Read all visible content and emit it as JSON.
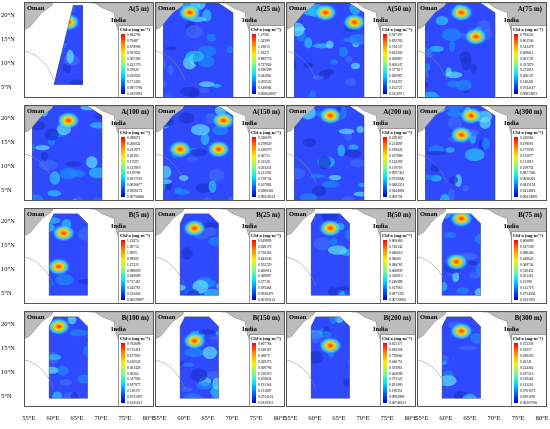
{
  "chart_data": [
    {
      "type": "heatmap",
      "title": "A(5 m)",
      "legend_title": "Chl-a (mg·m⁻³)",
      "ticks": [
        "0.842794",
        "0.79487",
        "0.678996",
        "0.591822",
        "0.507496",
        "0.423179",
        "0.33925",
        "0.255026",
        "0.171403",
        "0.0871786",
        "0.0335993"
      ],
      "hot_spots": [
        [
          62,
          22
        ],
        [
          63,
          19
        ]
      ],
      "extent": "diagonal coastal strip"
    },
    {
      "type": "heatmap",
      "title": "A(25 m)",
      "legend_title": "Chl-a (mg·m⁻³)",
      "ticks": [
        "1.47561",
        "1.32399",
        "1.18015",
        "1.03271",
        "0.885776",
        "0.737826",
        "0.590399",
        "0.442961",
        "0.295522",
        "0.148084",
        "0.000645007"
      ],
      "hot_spots": [
        [
          61,
          21
        ]
      ],
      "extent": "full"
    },
    {
      "type": "heatmap",
      "title": "A(50 m)",
      "legend_title": "Chl-a (mg·m⁻³)",
      "ticks": [
        "0.927397",
        "0.835782",
        "0.744137",
        "0.652502",
        "0.560867",
        "0.469247",
        "0.377617",
        "0.285987",
        "0.194357",
        "0.102727",
        "0.0110971"
      ],
      "hot_spots": [
        [
          62,
          21
        ],
        [
          68,
          19
        ]
      ],
      "extent": "full"
    },
    {
      "type": "heatmap",
      "title": "A(75 m)",
      "legend_title": "Chl-a (mg·m⁻³)",
      "ticks": [
        "0.784232",
        "0.601536",
        "0.523478",
        "0.469612",
        "0.401745",
        "0.337879",
        "0.272013",
        "0.206147",
        "0.140281",
        "0.0744147",
        "0.00854853"
      ],
      "hot_spots": [
        [
          63,
          21
        ],
        [
          66,
          16
        ]
      ],
      "extent": "full"
    },
    {
      "type": "heatmap",
      "title": "A(100 m)",
      "legend_title": "Chl-a (mg·m⁻³)",
      "ticks": [
        "0.288072",
        "0.260022",
        "0.231975",
        "0.20392",
        "0.17587",
        "0.147819",
        "0.119769",
        "0.0917183",
        "0.0636677",
        "0.0356172",
        "0.00756666"
      ],
      "hot_spots": [
        [
          63,
          20
        ]
      ],
      "extent": "full"
    },
    {
      "type": "heatmap",
      "title": "A(150 m)",
      "legend_title": "Chl-a (mg·m⁻³)",
      "ticks": [
        "0.526679",
        "0.478829",
        "0.418979",
        "0.36713",
        "0.31528",
        "0.263431",
        "0.211581",
        "0.159732",
        "0.107882",
        "0.0560326",
        "0.00418314"
      ],
      "hot_spots": [
        [
          68,
          20
        ],
        [
          59,
          14
        ],
        [
          67,
          14
        ]
      ],
      "extent": "full"
    },
    {
      "type": "heatmap",
      "title": "A(200 m)",
      "legend_title": "Chl-a (mg·m⁻³)",
      "ticks": [
        "0.238367",
        "0.214695",
        "0.190024",
        "0.167068",
        "0.143395",
        "0.119719",
        "0.0957461",
        "0.0720006",
        "0.0482351",
        "0.0244696",
        "0.000704"
      ],
      "hot_spots": [
        [
          63,
          21
        ]
      ],
      "extent": "full"
    },
    {
      "type": "heatmap",
      "title": "A(300 m)",
      "legend_title": "Chl-a (mg·m⁻³)",
      "ticks": [
        "0.220062",
        "0.198001",
        "0.175939",
        "0.153877",
        "0.131815",
        "0.109754",
        "0.0877366",
        "0.0656302",
        "0.0435154",
        "0.0214003",
        "0.00414699"
      ],
      "hot_spots": [
        [
          65,
          21
        ],
        [
          63,
          17
        ]
      ],
      "extent": "full"
    },
    {
      "type": "heatmap",
      "title": "B(5 m)",
      "legend_title": "Chl-a (mg·m⁻³)",
      "ticks": [
        "1.21874",
        "1.09712",
        "1.0955",
        "0.98505",
        "1.27223",
        "0.988059",
        "0.849809",
        "0.727467",
        "0.425765",
        "0.214443",
        "0.00239907"
      ],
      "hot_spots": [
        [
          62,
          18
        ],
        [
          61,
          11
        ]
      ],
      "extent": "masked box"
    },
    {
      "type": "heatmap",
      "title": "B(25 m)",
      "legend_title": "Chl-a (mg·m⁻³)",
      "ticks": [
        "0.919995",
        "0.828179",
        "0.736362",
        "0.644546",
        "0.552729",
        "0.460912",
        "0.369097",
        "0.27728",
        "0.185464",
        "0.0936479",
        "0.00183114"
      ],
      "hot_spots": [
        [
          62,
          19
        ]
      ],
      "extent": "masked box"
    },
    {
      "type": "heatmap",
      "title": "B(50 m)",
      "legend_title": "Chl-a (mg·m⁻³)",
      "ticks": [
        "0.806469",
        "0.726342",
        "0.646616",
        "0.56669",
        "0.486765",
        "0.406839",
        "0.326913",
        "0.246988",
        "0.167063",
        "0.0871355",
        "0.00720962"
      ],
      "hot_spots": [
        [
          63,
          19
        ]
      ],
      "extent": "masked box"
    },
    {
      "type": "heatmap",
      "title": "B(75 m)",
      "legend_title": "Chl-a (mg·m⁻³)",
      "ticks": [
        "0.606809",
        "0.547538",
        "0.488266",
        "0.428625",
        "0.369744",
        "0.310452",
        "0.251261",
        "0.19198",
        "0.132718",
        "0.0734504",
        "0.0141955"
      ],
      "hot_spots": [
        [
          63,
          21
        ],
        [
          62,
          12
        ]
      ],
      "extent": "masked box"
    },
    {
      "type": "heatmap",
      "title": "B(100 m)",
      "legend_title": "Chl-a (mg·m⁻³)",
      "ticks": [
        "0.792698",
        "0.713418",
        "0.677063",
        "0.610545",
        "0.561428",
        "0.38262",
        "0.317992",
        "0.187977",
        "0.130157",
        "0.0721397",
        "0.0145221"
      ],
      "hot_spots": [
        [
          61,
          20
        ]
      ],
      "extent": "masked box"
    },
    {
      "type": "heatmap",
      "title": "B(150 m)",
      "legend_title": "Chl-a (mg·m⁻³)",
      "ticks": [
        "0.607784",
        "0.548167",
        "0.48875",
        "0.429273",
        "0.369796",
        "0.310319",
        "0.250842",
        "0.191364",
        "0.131887",
        "0.0724102",
        "0.0129331"
      ],
      "hot_spots": [
        [
          62,
          17
        ]
      ],
      "extent": "masked box"
    },
    {
      "type": "heatmap",
      "title": "B(200 m)",
      "legend_title": "Chl-a (mg·m⁻³)",
      "ticks": [
        "0.821371",
        "0.830458",
        "0.738666",
        "0.646751",
        "0.555863",
        "0.464698",
        "0.373121",
        "0.281903",
        "0.190351",
        "0.0992998",
        "0.00746551"
      ],
      "hot_spots": [
        [
          63,
          16
        ]
      ],
      "extent": "masked box"
    },
    {
      "type": "heatmap",
      "title": "B(300 m)",
      "legend_title": "Chl-a (mg·m⁻³)",
      "ticks": [
        "0.372356",
        "0.33557",
        "0.298459",
        "0.26141",
        "0.224362",
        "0.187313",
        "0.150264",
        "0.113216",
        "0.0761675",
        "0.0391189",
        "0.00207036"
      ],
      "hot_spots": [
        [
          63,
          19
        ]
      ],
      "extent": "masked box"
    }
  ],
  "labels": {
    "land_west": "Oman",
    "land_east": "India"
  },
  "axes": {
    "y_ticks": [
      "20°N",
      "15°N",
      "10°N",
      "5°N"
    ],
    "x_ticks": [
      "55°E",
      "60°E",
      "65°E",
      "70°E",
      "75°E",
      "80°E"
    ],
    "lat_range": [
      3,
      23
    ],
    "lon_range": [
      54,
      81
    ]
  }
}
